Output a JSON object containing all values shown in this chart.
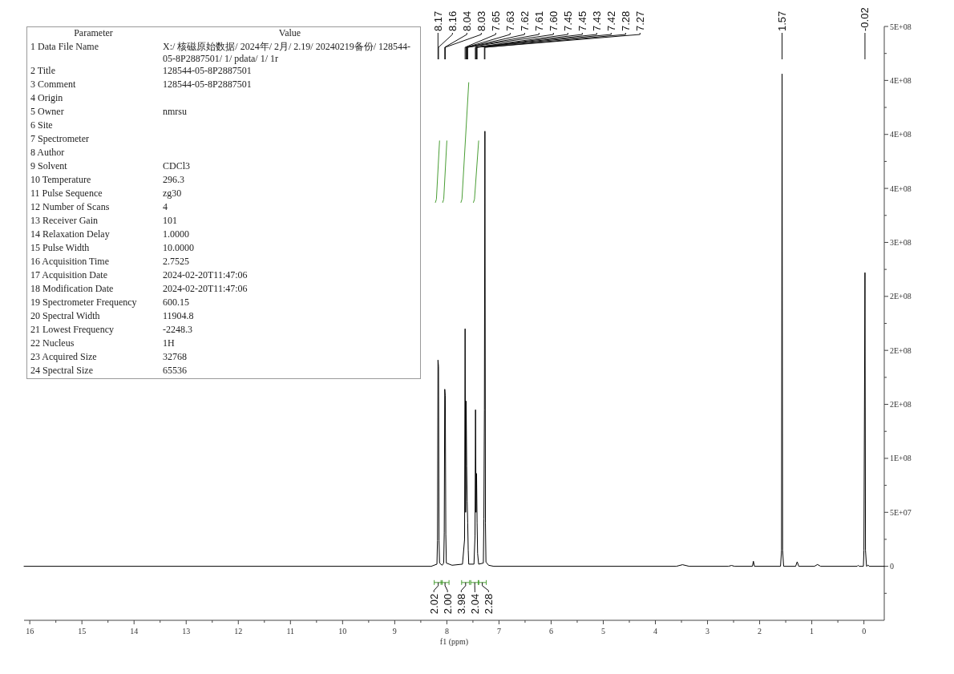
{
  "chart_data": [
    {
      "type": "line",
      "xlabel": "f1 (ppm)",
      "xlim": [
        16.11,
        -0.39
      ],
      "ylim": [
        -50000000,
        500000000
      ],
      "xticks": [
        16,
        {
          "value": 15.5,
          "label": null
        },
        15,
        {
          "value": 14.5,
          "label": null
        },
        14,
        {
          "value": 13.5,
          "label": null
        },
        13,
        {
          "value": 12.5,
          "label": null
        },
        12,
        {
          "value": 11.5,
          "label": null
        },
        11,
        {
          "value": 10.5,
          "label": null
        },
        10,
        {
          "value": 9.5,
          "label": null
        },
        9,
        {
          "value": 8.5,
          "label": null
        },
        8,
        {
          "value": 7.5,
          "label": null
        },
        7,
        {
          "value": 6.5,
          "label": null
        },
        6,
        {
          "value": 5.5,
          "label": null
        },
        5,
        {
          "value": 4.5,
          "label": null
        },
        4,
        {
          "value": 3.5,
          "label": null
        },
        3,
        {
          "value": 2.5,
          "label": null
        },
        2,
        {
          "value": 1.5,
          "label": null
        },
        1,
        {
          "value": 0.5,
          "label": null
        },
        0
      ],
      "yticks": [
        {
          "value": -25000000,
          "label": null
        },
        0,
        {
          "value": 25000000,
          "label": null
        },
        {
          "value": 50000000,
          "label": "5E+07"
        },
        {
          "value": 75000000,
          "label": null
        },
        {
          "value": 100000000,
          "label": "1E+08"
        },
        {
          "value": 125000000,
          "label": null
        },
        {
          "value": 150000000,
          "label": "2E+08"
        },
        {
          "value": 175000000,
          "label": null
        },
        {
          "value": 200000000,
          "label": "2E+08"
        },
        {
          "value": 225000000,
          "label": null
        },
        {
          "value": 250000000,
          "label": "2E+08"
        },
        {
          "value": 275000000,
          "label": null
        },
        {
          "value": 300000000,
          "label": "3E+08"
        },
        {
          "value": 325000000,
          "label": null
        },
        {
          "value": 350000000,
          "label": "4E+08"
        },
        {
          "value": 375000000,
          "label": null
        },
        {
          "value": 400000000,
          "label": "4E+08"
        },
        {
          "value": 425000000,
          "label": null
        },
        {
          "value": 450000000,
          "label": "4E+08"
        },
        {
          "value": 475000000,
          "label": null
        },
        {
          "value": 500000000,
          "label": "5E+08"
        }
      ],
      "series": [
        {
          "color": "#000000",
          "x": [
            16.11,
            8.3,
            8.19,
            8.18,
            8.17,
            8.16,
            8.15,
            8.14,
            8.09,
            8.06,
            8.05,
            8.04,
            8.03,
            8.02,
            8.01,
            7.9,
            7.7,
            7.66,
            7.65,
            7.64,
            7.63,
            7.62,
            7.61,
            7.6,
            7.59,
            7.58,
            7.48,
            7.46,
            7.45,
            7.44,
            7.43,
            7.42,
            7.41,
            7.39,
            7.3,
            7.29,
            7.28,
            7.27,
            7.26,
            7.25,
            7.2,
            7.1,
            3.6,
            3.48,
            3.35,
            2.6,
            2.54,
            2.48,
            2.14,
            2.12,
            2.1,
            1.6,
            1.58,
            1.57,
            1.56,
            1.54,
            1.31,
            1.28,
            1.25,
            0.95,
            0.89,
            0.83,
            0.13,
            0.11,
            0.09,
            0.01,
            0.0,
            -0.02,
            -0.03,
            -0.05,
            -0.08,
            -0.1,
            -0.39
          ],
          "values": [
            0,
            0,
            2000000,
            24000000,
            191000000,
            185000000,
            24000000,
            3000000,
            1000000,
            3000000,
            31000000,
            164000000,
            158000000,
            30000000,
            3000000,
            1000000,
            2000000,
            25000000,
            220000000,
            50000000,
            153000000,
            93000000,
            60000000,
            40000000,
            15000000,
            2000000,
            2000000,
            28000000,
            145000000,
            50000000,
            86000000,
            40000000,
            12000000,
            2000000,
            3000000,
            44000000,
            145000000,
            403000000,
            40000000,
            4000000,
            1000000,
            0,
            0,
            1500000,
            0,
            0,
            800000,
            0,
            0,
            4700000,
            0,
            0,
            15000000,
            456000000,
            15000000,
            0,
            0,
            4200000,
            0,
            0,
            1700000,
            0,
            0,
            1000000,
            0,
            0,
            15000000,
            272000000,
            15000000,
            0,
            1200000,
            0,
            0
          ]
        },
        {
          "color": "#4a9e35",
          "x": [
            8.22,
            8.2,
            8.14
          ],
          "values": [
            337000000,
            340000000,
            394000000
          ]
        },
        {
          "color": "#4a9e35",
          "x": [
            8.08,
            8.06,
            8.0
          ],
          "values": [
            337000000,
            340000000,
            394000000
          ]
        },
        {
          "color": "#4a9e35",
          "x": [
            7.73,
            7.71,
            7.58
          ],
          "values": [
            337000000,
            340000000,
            448000000
          ]
        },
        {
          "color": "#4a9e35",
          "x": [
            7.49,
            7.47,
            7.39
          ],
          "values": [
            337000000,
            340000000,
            394000000
          ]
        }
      ],
      "annotations": [
        {
          "text": "8.17",
          "x": 8.17
        },
        {
          "text": "8.16",
          "x": 8.16
        },
        {
          "text": "8.04",
          "x": 8.04
        },
        {
          "text": "8.03",
          "x": 8.03
        },
        {
          "text": "7.65",
          "x": 7.65
        },
        {
          "text": "7.63",
          "x": 7.63
        },
        {
          "text": "7.62",
          "x": 7.62
        },
        {
          "text": "7.61",
          "x": 7.61
        },
        {
          "text": "7.60",
          "x": 7.6
        },
        {
          "text": "7.45",
          "x": 7.45
        },
        {
          "text": "7.45",
          "x": 7.45
        },
        {
          "text": "7.43",
          "x": 7.43
        },
        {
          "text": "7.42",
          "x": 7.42
        },
        {
          "text": "7.28",
          "x": 7.28
        },
        {
          "text": "7.27",
          "x": 7.27
        },
        {
          "text": "1.57",
          "x": 1.57
        },
        {
          "text": "-0.02",
          "x": -0.02
        },
        {
          "text": "2.02",
          "x": 8.165,
          "y": -15000000
        },
        {
          "text": "2.00",
          "x": 8.035,
          "y": -15000000
        },
        {
          "text": "3.98",
          "x": 7.64,
          "y": -15000000
        },
        {
          "text": "2.04",
          "x": 7.465,
          "y": -15000000
        },
        {
          "text": "2.28",
          "x": 7.32,
          "y": -15000000
        }
      ]
    },
    {
      "type": "other",
      "annotations": [
        "Parameter",
        "Value"
      ],
      "categories": [
        "1 Data File Name",
        "2 Title",
        "3 Comment",
        "4 Origin",
        "5 Owner",
        "6 Site",
        "7 Spectrometer",
        "8 Author",
        "9 Solvent",
        "10 Temperature",
        "11 Pulse Sequence",
        "12 Number of Scans",
        "13 Receiver Gain",
        "14 Relaxation Delay",
        "15 Pulse Width",
        "16 Acquisition Time",
        "17 Acquisition Date",
        "18 Modification Date",
        "19 Spectrometer Frequency",
        "20 Spectral Width",
        "21 Lowest Frequency",
        "22 Nucleus",
        "23 Acquired Size",
        "24 Spectral Size"
      ],
      "value_labels": [
        "X:/ 核磁原始数据/ 2024年/ 2月/ 2.19/ 20240219备份/ 128544-05-8P2887501/ 1/ pdata/ 1/ 1r",
        "128544-05-8P2887501",
        "128544-05-8P2887501",
        null,
        "nmrsu",
        null,
        null,
        null,
        "CDCl3",
        "296.3",
        "zg30",
        "4",
        "101",
        "1.0000",
        "10.0000",
        "2.7525",
        "2024-02-20T11:47:06",
        "2024-02-20T11:47:06",
        "600.15",
        "11904.8",
        "-2248.3",
        "1H",
        "32768",
        "65536"
      ]
    }
  ]
}
